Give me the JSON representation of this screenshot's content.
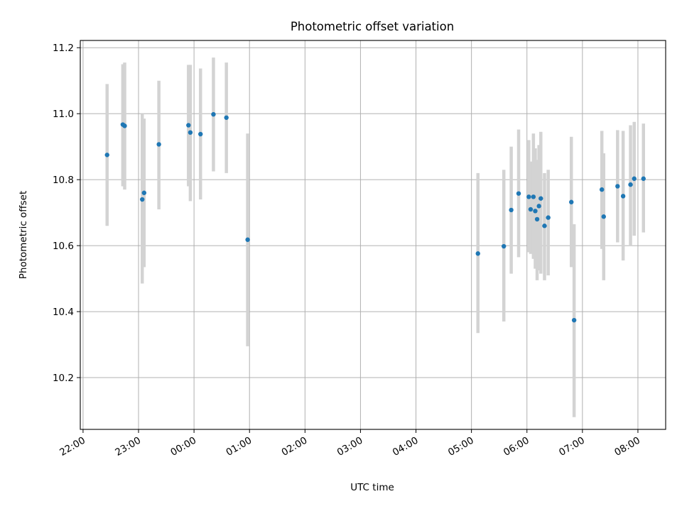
{
  "chart_data": {
    "type": "scatter",
    "title": "Photometric offset variation",
    "xlabel": "UTC time",
    "ylabel": "Photometric offset",
    "x_axis": {
      "unit": "minutes relative to 00:00 UTC",
      "range": [
        -123,
        510
      ],
      "ticks": [
        -120,
        -60,
        0,
        60,
        120,
        180,
        240,
        300,
        360,
        420,
        480
      ],
      "tick_labels": [
        "22:00",
        "23:00",
        "00:00",
        "01:00",
        "02:00",
        "03:00",
        "04:00",
        "05:00",
        "06:00",
        "07:00",
        "08:00"
      ]
    },
    "y_axis": {
      "range": [
        10.043,
        11.222
      ],
      "ticks": [
        10.2,
        10.4,
        10.6,
        10.8,
        11.0,
        11.2
      ],
      "tick_labels": [
        "10.2",
        "10.4",
        "10.6",
        "10.8",
        "11.0",
        "11.2"
      ]
    },
    "grid": true,
    "colors": {
      "point": "#1f77b4",
      "errorbar": "#d3d3d3",
      "grid": "#b0b0b0"
    },
    "points": [
      {
        "x": -94,
        "y": 10.875,
        "ylo": 10.66,
        "yhi": 11.09
      },
      {
        "x": -77,
        "y": 10.967,
        "ylo": 10.78,
        "yhi": 11.15
      },
      {
        "x": -75,
        "y": 10.963,
        "ylo": 10.77,
        "yhi": 11.155
      },
      {
        "x": -56,
        "y": 10.74,
        "ylo": 10.485,
        "yhi": 11.0
      },
      {
        "x": -54,
        "y": 10.76,
        "ylo": 10.535,
        "yhi": 10.985
      },
      {
        "x": -38,
        "y": 10.907,
        "ylo": 10.71,
        "yhi": 11.1
      },
      {
        "x": -6,
        "y": 10.965,
        "ylo": 10.78,
        "yhi": 11.148
      },
      {
        "x": -4,
        "y": 10.943,
        "ylo": 10.735,
        "yhi": 11.148
      },
      {
        "x": 7,
        "y": 10.938,
        "ylo": 10.74,
        "yhi": 11.137
      },
      {
        "x": 21,
        "y": 10.998,
        "ylo": 10.825,
        "yhi": 11.17
      },
      {
        "x": 35,
        "y": 10.988,
        "ylo": 10.82,
        "yhi": 11.155
      },
      {
        "x": 58,
        "y": 10.618,
        "ylo": 10.295,
        "yhi": 10.94
      },
      {
        "x": 307,
        "y": 10.576,
        "ylo": 10.335,
        "yhi": 10.82
      },
      {
        "x": 335,
        "y": 10.598,
        "ylo": 10.37,
        "yhi": 10.83
      },
      {
        "x": 343,
        "y": 10.708,
        "ylo": 10.515,
        "yhi": 10.9
      },
      {
        "x": 351,
        "y": 10.758,
        "ylo": 10.565,
        "yhi": 10.952
      },
      {
        "x": 362,
        "y": 10.748,
        "ylo": 10.58,
        "yhi": 10.92
      },
      {
        "x": 364,
        "y": 10.71,
        "ylo": 10.575,
        "yhi": 10.855
      },
      {
        "x": 367,
        "y": 10.748,
        "ylo": 10.56,
        "yhi": 10.94
      },
      {
        "x": 369,
        "y": 10.705,
        "ylo": 10.53,
        "yhi": 10.895
      },
      {
        "x": 371,
        "y": 10.68,
        "ylo": 10.495,
        "yhi": 10.86
      },
      {
        "x": 373,
        "y": 10.72,
        "ylo": 10.525,
        "yhi": 10.905
      },
      {
        "x": 375,
        "y": 10.743,
        "ylo": 10.515,
        "yhi": 10.945
      },
      {
        "x": 379,
        "y": 10.66,
        "ylo": 10.495,
        "yhi": 10.82
      },
      {
        "x": 383,
        "y": 10.685,
        "ylo": 10.51,
        "yhi": 10.83
      },
      {
        "x": 408,
        "y": 10.732,
        "ylo": 10.535,
        "yhi": 10.93
      },
      {
        "x": 411,
        "y": 10.374,
        "ylo": 10.08,
        "yhi": 10.665
      },
      {
        "x": 441,
        "y": 10.77,
        "ylo": 10.59,
        "yhi": 10.948
      },
      {
        "x": 443,
        "y": 10.688,
        "ylo": 10.495,
        "yhi": 10.88
      },
      {
        "x": 458,
        "y": 10.78,
        "ylo": 10.61,
        "yhi": 10.95
      },
      {
        "x": 464,
        "y": 10.75,
        "ylo": 10.555,
        "yhi": 10.948
      },
      {
        "x": 472,
        "y": 10.785,
        "ylo": 10.6,
        "yhi": 10.965
      },
      {
        "x": 476,
        "y": 10.803,
        "ylo": 10.63,
        "yhi": 10.975
      },
      {
        "x": 486,
        "y": 10.803,
        "ylo": 10.64,
        "yhi": 10.97
      }
    ]
  }
}
